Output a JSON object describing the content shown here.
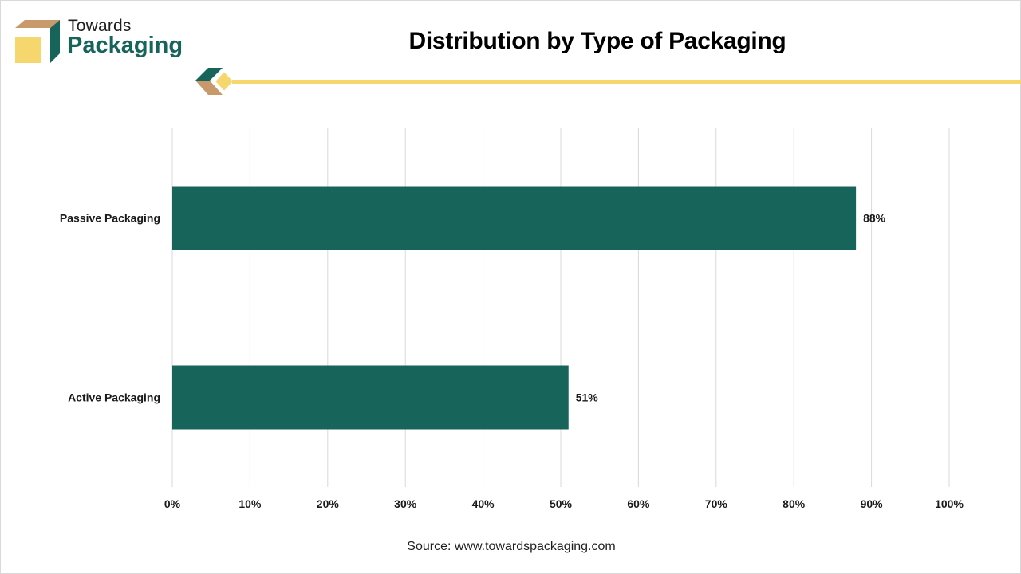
{
  "brand": {
    "name_top": "Towards",
    "name_bottom": "Packaging",
    "primary_color": "#17655a",
    "accent_color": "#f5d76e",
    "secondary_color": "#c8996a"
  },
  "title": "Distribution by Type of Packaging",
  "source": "Source: www.towardspackaging.com",
  "chart_data": {
    "type": "bar",
    "orientation": "horizontal",
    "title": "Distribution by Type of Packaging",
    "categories": [
      "Passive Packaging",
      "Active Packaging"
    ],
    "values": [
      88,
      51
    ],
    "value_labels": [
      "88%",
      "51%"
    ],
    "bar_color": "#17655a",
    "xlim": [
      0,
      100
    ],
    "x_ticks": [
      0,
      10,
      20,
      30,
      40,
      50,
      60,
      70,
      80,
      90,
      100
    ],
    "x_tick_labels": [
      "0%",
      "10%",
      "20%",
      "30%",
      "40%",
      "50%",
      "60%",
      "70%",
      "80%",
      "90%",
      "100%"
    ],
    "grid": true,
    "xlabel": "",
    "ylabel": ""
  }
}
